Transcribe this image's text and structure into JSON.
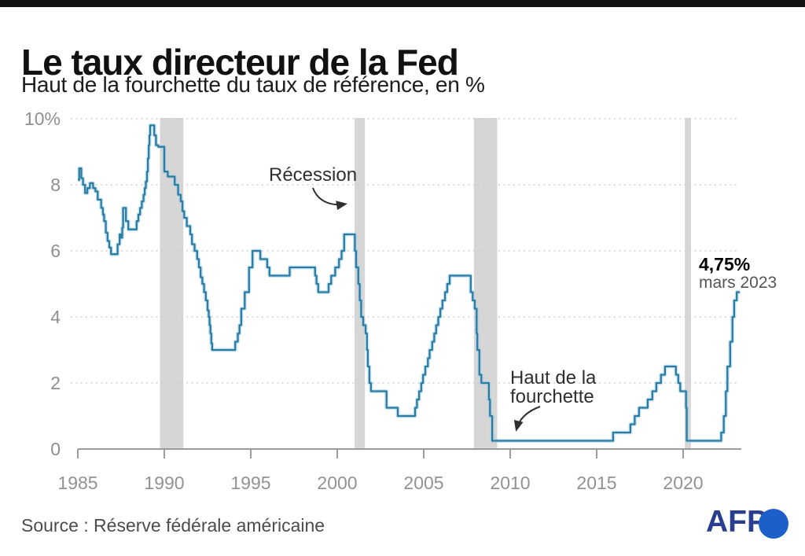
{
  "page": {
    "title": "Le taux directeur de la Fed",
    "subtitle": "Haut de la fourchette du taux de référence, en %",
    "source": "Source : Réserve fédérale américaine",
    "brand": "AFP"
  },
  "chart_data": {
    "type": "line",
    "title": "Le taux directeur de la Fed",
    "subtitle": "Haut de la fourchette du taux de référence, en %",
    "unit": "%",
    "step": "after",
    "grid": "horizontal-dotted",
    "legend": "none",
    "xlim": [
      1985,
      2023.4
    ],
    "ylim": [
      0,
      10
    ],
    "x_ticks": [
      1985,
      1990,
      1995,
      2000,
      2005,
      2010,
      2015,
      2020
    ],
    "y_ticks": [
      0,
      2,
      4,
      6,
      8,
      10
    ],
    "y_tick_labels": [
      "0",
      "2",
      "4",
      "6",
      "8",
      "10%"
    ],
    "line_color": "#2b7ca3",
    "line_halo_color": "rgba(160,205,228,0.55)",
    "recession_band_color": "#d6d6d6",
    "recessions_years": [
      [
        1989.75,
        1991.1
      ],
      [
        2001.0,
        2001.6
      ],
      [
        2007.9,
        2009.25
      ],
      [
        2020.1,
        2020.45
      ]
    ],
    "series": [
      {
        "name": "Taux directeur de la Fed, haut de la fourchette (%)",
        "points": [
          [
            1985.0,
            8.15
          ],
          [
            1985.08,
            8.5
          ],
          [
            1985.2,
            8.2
          ],
          [
            1985.3,
            8.0
          ],
          [
            1985.42,
            7.75
          ],
          [
            1985.55,
            7.9
          ],
          [
            1985.7,
            8.05
          ],
          [
            1985.88,
            7.9
          ],
          [
            1986.02,
            7.8
          ],
          [
            1986.15,
            7.55
          ],
          [
            1986.35,
            7.3
          ],
          [
            1986.45,
            7.1
          ],
          [
            1986.52,
            6.9
          ],
          [
            1986.62,
            6.55
          ],
          [
            1986.72,
            6.3
          ],
          [
            1986.82,
            6.1
          ],
          [
            1986.92,
            5.9
          ],
          [
            1987.3,
            6.2
          ],
          [
            1987.42,
            6.5
          ],
          [
            1987.5,
            6.4
          ],
          [
            1987.57,
            6.7
          ],
          [
            1987.62,
            7.3
          ],
          [
            1987.78,
            6.9
          ],
          [
            1987.92,
            6.65
          ],
          [
            1988.4,
            6.9
          ],
          [
            1988.5,
            7.1
          ],
          [
            1988.6,
            7.3
          ],
          [
            1988.7,
            7.5
          ],
          [
            1988.8,
            7.7
          ],
          [
            1988.87,
            7.9
          ],
          [
            1988.93,
            8.1
          ],
          [
            1989.0,
            8.4
          ],
          [
            1989.05,
            8.8
          ],
          [
            1989.1,
            9.2
          ],
          [
            1989.14,
            9.5
          ],
          [
            1989.18,
            9.8
          ],
          [
            1989.42,
            9.5
          ],
          [
            1989.52,
            9.2
          ],
          [
            1989.65,
            9.15
          ],
          [
            1990.0,
            8.4
          ],
          [
            1990.2,
            8.25
          ],
          [
            1990.6,
            8.0
          ],
          [
            1990.8,
            7.7
          ],
          [
            1990.95,
            7.5
          ],
          [
            1991.05,
            7.2
          ],
          [
            1991.15,
            7.0
          ],
          [
            1991.3,
            6.75
          ],
          [
            1991.5,
            6.5
          ],
          [
            1991.6,
            6.2
          ],
          [
            1991.75,
            6.0
          ],
          [
            1991.9,
            5.75
          ],
          [
            1992.0,
            5.5
          ],
          [
            1992.1,
            5.2
          ],
          [
            1992.2,
            5.0
          ],
          [
            1992.3,
            4.75
          ],
          [
            1992.4,
            4.5
          ],
          [
            1992.5,
            4.2
          ],
          [
            1992.57,
            4.0
          ],
          [
            1992.62,
            3.75
          ],
          [
            1992.67,
            3.5
          ],
          [
            1992.72,
            3.2
          ],
          [
            1992.77,
            3.0
          ],
          [
            1994.1,
            3.25
          ],
          [
            1994.25,
            3.5
          ],
          [
            1994.35,
            3.75
          ],
          [
            1994.45,
            4.25
          ],
          [
            1994.65,
            4.75
          ],
          [
            1994.9,
            5.5
          ],
          [
            1995.1,
            6.0
          ],
          [
            1995.55,
            5.75
          ],
          [
            1995.95,
            5.5
          ],
          [
            1996.08,
            5.25
          ],
          [
            1997.25,
            5.5
          ],
          [
            1998.72,
            5.25
          ],
          [
            1998.8,
            5.0
          ],
          [
            1998.9,
            4.75
          ],
          [
            1999.5,
            5.0
          ],
          [
            1999.65,
            5.25
          ],
          [
            1999.88,
            5.5
          ],
          [
            2000.1,
            5.75
          ],
          [
            2000.25,
            6.0
          ],
          [
            2000.4,
            6.5
          ],
          [
            2001.02,
            6.0
          ],
          [
            2001.09,
            5.5
          ],
          [
            2001.22,
            5.0
          ],
          [
            2001.3,
            4.5
          ],
          [
            2001.38,
            4.0
          ],
          [
            2001.5,
            3.75
          ],
          [
            2001.64,
            3.5
          ],
          [
            2001.72,
            3.0
          ],
          [
            2001.77,
            2.5
          ],
          [
            2001.86,
            2.0
          ],
          [
            2001.95,
            1.75
          ],
          [
            2002.85,
            1.25
          ],
          [
            2003.5,
            1.0
          ],
          [
            2004.5,
            1.25
          ],
          [
            2004.61,
            1.5
          ],
          [
            2004.73,
            1.75
          ],
          [
            2004.86,
            2.0
          ],
          [
            2004.96,
            2.25
          ],
          [
            2005.09,
            2.5
          ],
          [
            2005.24,
            2.75
          ],
          [
            2005.34,
            3.0
          ],
          [
            2005.49,
            3.25
          ],
          [
            2005.61,
            3.5
          ],
          [
            2005.72,
            3.75
          ],
          [
            2005.84,
            4.0
          ],
          [
            2005.96,
            4.25
          ],
          [
            2006.08,
            4.5
          ],
          [
            2006.23,
            4.75
          ],
          [
            2006.36,
            5.0
          ],
          [
            2006.5,
            5.25
          ],
          [
            2007.72,
            4.75
          ],
          [
            2007.83,
            4.5
          ],
          [
            2007.95,
            4.25
          ],
          [
            2008.06,
            3.5
          ],
          [
            2008.1,
            3.0
          ],
          [
            2008.22,
            2.25
          ],
          [
            2008.33,
            2.0
          ],
          [
            2008.77,
            1.5
          ],
          [
            2008.83,
            1.0
          ],
          [
            2008.96,
            0.25
          ],
          [
            2015.95,
            0.5
          ],
          [
            2016.95,
            0.75
          ],
          [
            2017.2,
            1.0
          ],
          [
            2017.45,
            1.25
          ],
          [
            2017.95,
            1.5
          ],
          [
            2018.22,
            1.75
          ],
          [
            2018.45,
            2.0
          ],
          [
            2018.72,
            2.25
          ],
          [
            2018.95,
            2.5
          ],
          [
            2019.58,
            2.25
          ],
          [
            2019.72,
            2.0
          ],
          [
            2019.83,
            1.75
          ],
          [
            2020.17,
            1.25
          ],
          [
            2020.21,
            0.25
          ],
          [
            2022.2,
            0.5
          ],
          [
            2022.35,
            1.0
          ],
          [
            2022.47,
            1.75
          ],
          [
            2022.56,
            2.5
          ],
          [
            2022.72,
            3.25
          ],
          [
            2022.85,
            4.0
          ],
          [
            2022.95,
            4.5
          ],
          [
            2023.1,
            4.75
          ],
          [
            2023.28,
            4.75
          ]
        ]
      }
    ],
    "annotations": {
      "recession_label": "Récession",
      "range_top_label_line1": "Haut de la",
      "range_top_label_line2": "fourchette",
      "last_value": "4,75%",
      "last_value_date": "mars 2023"
    }
  }
}
